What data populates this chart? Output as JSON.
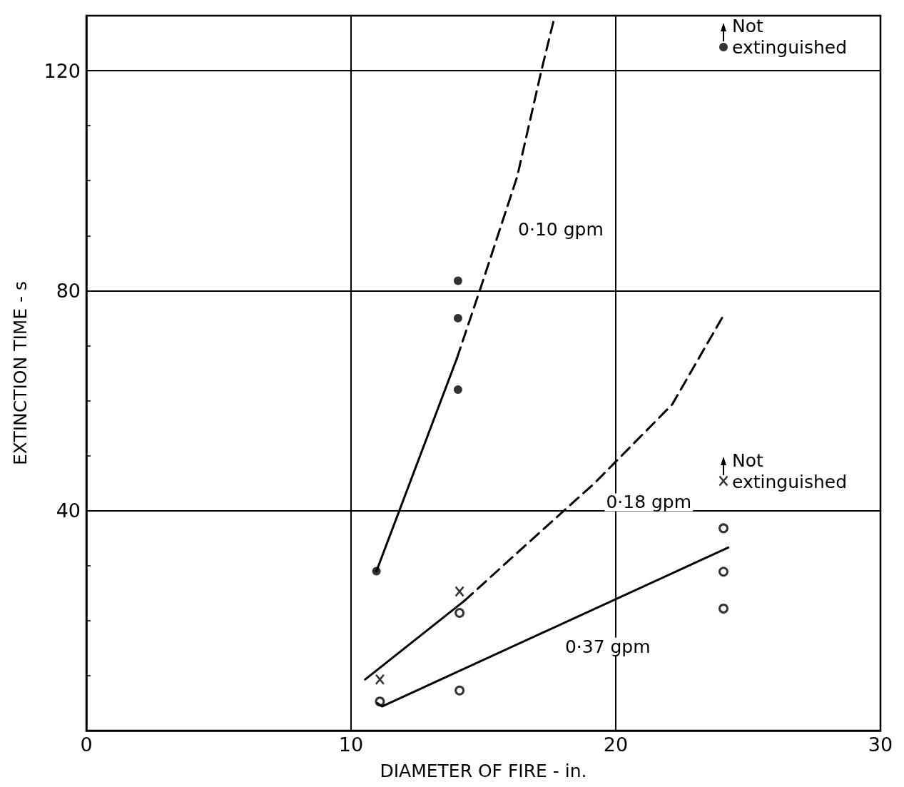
{
  "chart_data": {
    "type": "scatter",
    "xlabel": "DIAMETER OF FIRE - in.",
    "ylabel": "EXTINCTION TIME - s",
    "xlim": [
      0,
      30
    ],
    "xticks": [
      0,
      10,
      20,
      30
    ],
    "ylim": [
      0,
      130
    ],
    "yticks": [
      {
        "value": 10,
        "label": null
      },
      {
        "value": 20,
        "label": null
      },
      {
        "value": 30,
        "label": null
      },
      40,
      {
        "value": 50,
        "label": null
      },
      {
        "value": 60,
        "label": null
      },
      {
        "value": 70,
        "label": null
      },
      80,
      {
        "value": 90,
        "label": null
      },
      {
        "value": 100,
        "label": null
      },
      {
        "value": 110,
        "label": null
      },
      120
    ],
    "grid": true,
    "legend": false,
    "series": [
      {
        "marker": "circle",
        "color": "#000000",
        "x": [
          10.96,
          14.04,
          14.04,
          14.04,
          24.07
        ],
        "values": [
          29,
          81.8,
          75,
          62,
          124.3
        ]
      },
      {
        "marker": "cross",
        "color": "#000000",
        "x": [
          11.09,
          14.1,
          24.07
        ],
        "values": [
          9.3,
          25.3,
          45.4
        ]
      },
      {
        "color": "#000000",
        "x": [
          11.09,
          14.1,
          14.1,
          24.07,
          24.07,
          24.07
        ],
        "values": [
          5.3,
          7.3,
          21.4,
          36.8,
          28.9,
          22.2
        ]
      },
      {
        "type": "line",
        "marker": "none",
        "line_style": "solid",
        "color": "#000000",
        "x": [
          10.96,
          14.0
        ],
        "values": [
          29,
          67.7
        ]
      },
      {
        "type": "line",
        "name": "0·10 gpm",
        "marker": "none",
        "line_style": "dashed",
        "color": "#000000",
        "x": [
          14.0,
          14.95,
          16.28,
          17.2,
          17.7
        ],
        "values": [
          67.7,
          81.3,
          100.8,
          120.2,
          130
        ]
      },
      {
        "type": "line",
        "marker": "none",
        "line_style": "solid",
        "color": "#000000",
        "x": [
          10.53,
          14.28
        ],
        "values": [
          9.3,
          23.6
        ]
      },
      {
        "type": "line",
        "name": "0·18 gpm",
        "marker": "none",
        "line_style": "dashed",
        "color": "#000000",
        "x": [
          14.28,
          16.8,
          19.2,
          22.13,
          24.07
        ],
        "values": [
          23.6,
          34.6,
          45,
          59.3,
          75.5
        ]
      },
      {
        "type": "line",
        "name": "0·37 gpm",
        "marker": "none",
        "line_style": "solid",
        "color": "#000000",
        "x": [
          11.0,
          11.17,
          24.25
        ],
        "values": [
          5.0,
          4.4,
          33.3
        ]
      }
    ],
    "annotations": [
      {
        "text": "Not\nextinguished",
        "x": 24.07,
        "y": 124.3
      },
      {
        "text": "Not\nextinguished",
        "x": 24.07,
        "y": 45.4
      }
    ]
  }
}
